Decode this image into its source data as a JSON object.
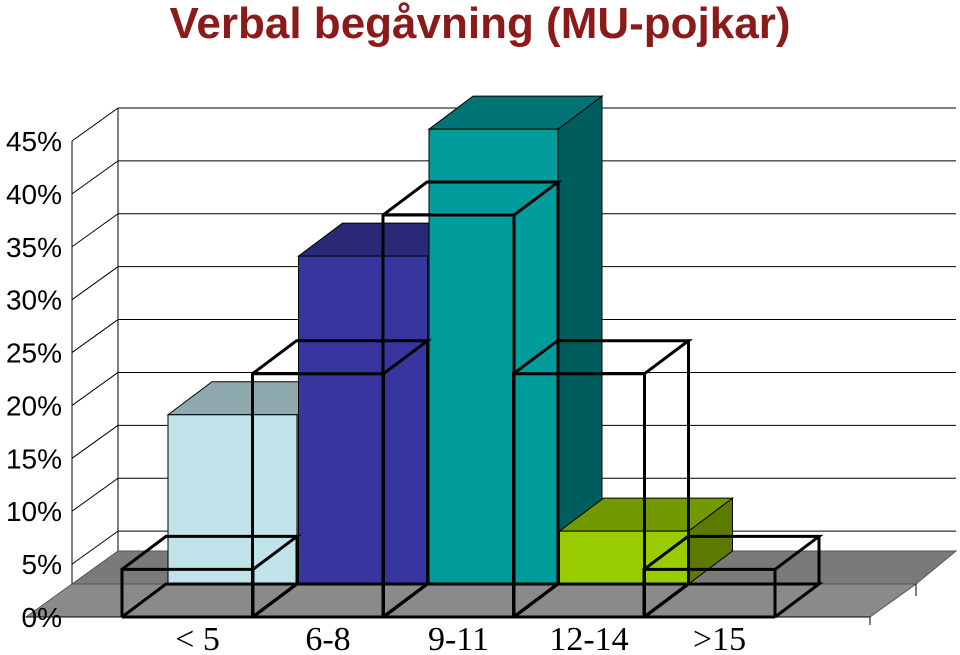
{
  "chart_data": {
    "type": "bar",
    "title": "Verbal begåvning (MU-pojkar)",
    "xlabel": "",
    "ylabel": "",
    "categories": [
      "< 5",
      "6-8",
      "9-11",
      "12-14",
      ">15"
    ],
    "ylim": [
      0,
      45
    ],
    "yticks": [
      "0%",
      "5%",
      "10%",
      "15%",
      "20%",
      "25%",
      "30%",
      "35%",
      "40%",
      "45%"
    ],
    "grid": true,
    "three_d": true,
    "series": [
      {
        "values": [
          16,
          31,
          43,
          5,
          0
        ],
        "colors": [
          "#BFE3E8",
          "#36369E",
          "#009B9B",
          "#99CC00",
          "#99CC00"
        ],
        "style": "filled"
      },
      {
        "values": [
          4.5,
          23,
          38,
          23,
          4.5
        ],
        "style": "outline"
      }
    ]
  }
}
